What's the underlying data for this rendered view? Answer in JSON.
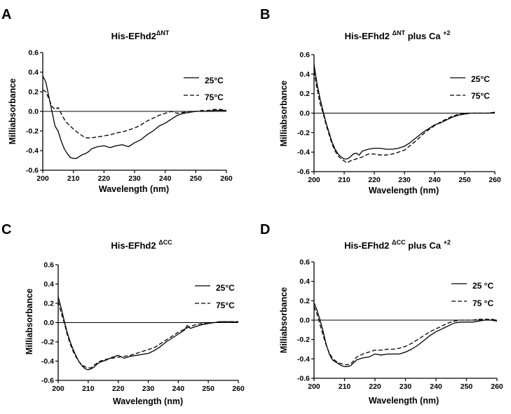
{
  "chart_data": [
    {
      "type": "line",
      "letter": "A",
      "title": {
        "main": "His-EFhd2",
        "sup": "ΔNT",
        "tail": "",
        "tail_sup": ""
      },
      "xlabel": "Wavelength (nm)",
      "ylabel": "Milliabsorbance",
      "xlim": [
        200,
        260
      ],
      "ylim": [
        -0.6,
        0.6
      ],
      "xticks": [
        200,
        210,
        220,
        230,
        240,
        250,
        260
      ],
      "yticks": [
        -0.6,
        -0.4,
        -0.2,
        0.0,
        0.2,
        0.4,
        0.6
      ],
      "zero_line": true,
      "legend_position": "top-right",
      "series": [
        {
          "name": "25°C",
          "dash": "solid",
          "x": [
            200,
            201,
            202,
            203,
            204,
            205,
            206,
            207,
            208,
            209,
            210,
            211,
            212,
            213,
            214,
            215,
            216,
            218,
            220,
            222,
            224,
            226,
            228,
            230,
            232,
            234,
            236,
            238,
            240,
            242,
            244,
            246,
            248,
            250,
            252,
            254,
            256,
            258,
            260
          ],
          "y": [
            0.36,
            0.3,
            0.15,
            0.0,
            -0.15,
            -0.2,
            -0.3,
            -0.38,
            -0.43,
            -0.47,
            -0.48,
            -0.48,
            -0.46,
            -0.44,
            -0.43,
            -0.41,
            -0.38,
            -0.36,
            -0.35,
            -0.37,
            -0.35,
            -0.34,
            -0.36,
            -0.32,
            -0.29,
            -0.24,
            -0.2,
            -0.15,
            -0.12,
            -0.08,
            -0.04,
            -0.02,
            -0.01,
            0.0,
            0.0,
            0.0,
            0.01,
            0.01,
            0.01
          ]
        },
        {
          "name": "75°C",
          "dash": "dashed",
          "x": [
            200,
            201,
            202,
            203,
            204,
            205,
            206,
            207,
            208,
            209,
            210,
            212,
            214,
            216,
            218,
            220,
            222,
            224,
            226,
            228,
            230,
            232,
            234,
            236,
            238,
            240,
            242,
            244,
            246,
            248,
            250,
            252,
            254,
            256,
            258,
            260
          ],
          "y": [
            0.22,
            0.2,
            0.13,
            0.05,
            0.02,
            0.04,
            -0.02,
            -0.08,
            -0.12,
            -0.15,
            -0.18,
            -0.23,
            -0.27,
            -0.27,
            -0.26,
            -0.25,
            -0.24,
            -0.22,
            -0.21,
            -0.19,
            -0.17,
            -0.14,
            -0.1,
            -0.07,
            -0.04,
            -0.02,
            0.0,
            -0.02,
            -0.01,
            0.0,
            0.0,
            0.01,
            0.01,
            0.02,
            0.02,
            0.01
          ]
        }
      ]
    },
    {
      "type": "line",
      "letter": "B",
      "title": {
        "main": "His-EFhd2 ",
        "sup": "ΔNT",
        "tail": " plus Ca ",
        "tail_sup": "+2"
      },
      "xlabel": "Wavelength (nm)",
      "ylabel": "Milliabsorbance",
      "xlim": [
        200,
        260
      ],
      "ylim": [
        -0.6,
        0.6
      ],
      "xticks": [
        200,
        210,
        220,
        230,
        240,
        250,
        260
      ],
      "yticks": [
        -0.6,
        -0.4,
        -0.2,
        0.0,
        0.2,
        0.4,
        0.6
      ],
      "zero_line": true,
      "legend_position": "top-right",
      "series": [
        {
          "name": "25°C",
          "dash": "solid",
          "x": [
            200,
            201,
            202,
            203,
            204,
            205,
            206,
            207,
            208,
            209,
            210,
            211,
            212,
            213,
            214,
            215,
            216,
            218,
            220,
            222,
            224,
            226,
            228,
            230,
            232,
            234,
            236,
            238,
            240,
            242,
            244,
            246,
            248,
            250,
            252,
            254,
            256,
            258,
            260
          ],
          "y": [
            0.5,
            0.3,
            0.15,
            0.02,
            -0.1,
            -0.2,
            -0.3,
            -0.37,
            -0.42,
            -0.45,
            -0.47,
            -0.47,
            -0.45,
            -0.42,
            -0.41,
            -0.43,
            -0.39,
            -0.37,
            -0.36,
            -0.36,
            -0.37,
            -0.37,
            -0.36,
            -0.34,
            -0.3,
            -0.25,
            -0.2,
            -0.16,
            -0.12,
            -0.1,
            -0.07,
            -0.04,
            -0.02,
            -0.01,
            0.0,
            0.0,
            0.0,
            0.0,
            0.01
          ]
        },
        {
          "name": "75°C",
          "dash": "dashed",
          "x": [
            200,
            201,
            202,
            203,
            204,
            205,
            206,
            207,
            208,
            209,
            210,
            211,
            212,
            213,
            214,
            216,
            218,
            220,
            222,
            224,
            226,
            228,
            230,
            232,
            234,
            236,
            238,
            240,
            242,
            244,
            246,
            248,
            250,
            252,
            254,
            256,
            258,
            260
          ],
          "y": [
            0.43,
            0.25,
            0.1,
            0.0,
            -0.12,
            -0.22,
            -0.32,
            -0.39,
            -0.44,
            -0.47,
            -0.49,
            -0.51,
            -0.49,
            -0.48,
            -0.47,
            -0.45,
            -0.42,
            -0.42,
            -0.43,
            -0.43,
            -0.42,
            -0.4,
            -0.38,
            -0.33,
            -0.28,
            -0.22,
            -0.17,
            -0.13,
            -0.09,
            -0.06,
            -0.03,
            -0.01,
            0.0,
            0.0,
            0.0,
            0.0,
            0.0,
            0.0
          ]
        }
      ]
    },
    {
      "type": "line",
      "letter": "C",
      "title": {
        "main": "His-EFhd2 ",
        "sup": "ΔCC",
        "tail": "",
        "tail_sup": ""
      },
      "xlabel": "Wavelength (nm)",
      "ylabel": "Milliabsorbance",
      "xlim": [
        200,
        260
      ],
      "ylim": [
        -0.6,
        0.6
      ],
      "xticks": [
        200,
        210,
        220,
        230,
        240,
        250,
        260
      ],
      "yticks": [
        -0.6,
        -0.4,
        -0.2,
        0.0,
        0.2,
        0.4,
        0.6
      ],
      "zero_line": true,
      "legend_position": "top-right",
      "series": [
        {
          "name": "25°C",
          "dash": "solid",
          "x": [
            200,
            201,
            202,
            203,
            204,
            205,
            206,
            207,
            208,
            209,
            210,
            211,
            212,
            213,
            214,
            216,
            218,
            220,
            222,
            224,
            226,
            228,
            230,
            232,
            234,
            236,
            238,
            240,
            242,
            243,
            244,
            245,
            246,
            248,
            250,
            252,
            254,
            256,
            258,
            260
          ],
          "y": [
            0.27,
            0.15,
            0.02,
            -0.1,
            -0.2,
            -0.28,
            -0.35,
            -0.41,
            -0.45,
            -0.48,
            -0.49,
            -0.48,
            -0.46,
            -0.43,
            -0.41,
            -0.39,
            -0.36,
            -0.34,
            -0.37,
            -0.35,
            -0.34,
            -0.33,
            -0.32,
            -0.29,
            -0.25,
            -0.2,
            -0.16,
            -0.12,
            -0.08,
            -0.03,
            -0.06,
            -0.05,
            -0.04,
            -0.02,
            -0.01,
            0.0,
            0.01,
            0.01,
            0.01,
            0.0
          ]
        },
        {
          "name": "75°C",
          "dash": "dashed",
          "x": [
            200,
            201,
            202,
            203,
            204,
            205,
            206,
            207,
            208,
            209,
            210,
            211,
            212,
            213,
            214,
            216,
            218,
            220,
            222,
            224,
            226,
            228,
            230,
            232,
            234,
            236,
            238,
            240,
            242,
            244,
            246,
            248,
            250,
            252,
            254,
            256,
            258,
            260
          ],
          "y": [
            0.22,
            0.1,
            0.0,
            -0.12,
            -0.22,
            -0.3,
            -0.36,
            -0.41,
            -0.44,
            -0.46,
            -0.47,
            -0.47,
            -0.44,
            -0.42,
            -0.4,
            -0.38,
            -0.37,
            -0.36,
            -0.35,
            -0.34,
            -0.32,
            -0.3,
            -0.28,
            -0.26,
            -0.22,
            -0.18,
            -0.14,
            -0.1,
            -0.07,
            -0.04,
            -0.02,
            -0.01,
            0.0,
            0.0,
            0.01,
            0.01,
            0.01,
            0.01
          ]
        }
      ]
    },
    {
      "type": "line",
      "letter": "D",
      "title": {
        "main": "His-EFhd2 ",
        "sup": "ΔCC",
        "tail": " plus Ca ",
        "tail_sup": "+2"
      },
      "xlabel": "Wavelength (nm)",
      "ylabel": "Milliabsorbance",
      "xlim": [
        200,
        260
      ],
      "ylim": [
        -0.6,
        0.6
      ],
      "xticks": [
        200,
        210,
        220,
        230,
        240,
        250,
        260
      ],
      "yticks": [
        -0.6,
        -0.4,
        -0.2,
        0.0,
        0.2,
        0.4,
        0.6
      ],
      "zero_line": true,
      "legend_position": "top-right",
      "series": [
        {
          "name": "25 °C",
          "dash": "solid",
          "x": [
            200,
            201,
            202,
            203,
            204,
            205,
            206,
            207,
            208,
            209,
            210,
            211,
            212,
            213,
            214,
            216,
            218,
            220,
            222,
            224,
            226,
            228,
            230,
            232,
            234,
            236,
            238,
            240,
            242,
            244,
            246,
            248,
            250,
            252,
            254,
            256,
            258,
            260
          ],
          "y": [
            0.18,
            0.1,
            0.0,
            -0.12,
            -0.25,
            -0.35,
            -0.41,
            -0.43,
            -0.45,
            -0.47,
            -0.48,
            -0.48,
            -0.47,
            -0.44,
            -0.41,
            -0.39,
            -0.38,
            -0.35,
            -0.36,
            -0.35,
            -0.35,
            -0.35,
            -0.33,
            -0.3,
            -0.26,
            -0.21,
            -0.16,
            -0.12,
            -0.09,
            -0.06,
            -0.03,
            -0.02,
            -0.02,
            -0.02,
            -0.01,
            0.0,
            0.0,
            -0.01
          ]
        },
        {
          "name": "75 °C",
          "dash": "dashed",
          "x": [
            200,
            201,
            202,
            203,
            204,
            205,
            206,
            207,
            208,
            209,
            210,
            211,
            212,
            213,
            214,
            216,
            218,
            220,
            222,
            224,
            226,
            228,
            230,
            232,
            234,
            236,
            238,
            240,
            242,
            244,
            246,
            248,
            250,
            252,
            254,
            256,
            258,
            260
          ],
          "y": [
            0.14,
            0.06,
            -0.05,
            -0.16,
            -0.26,
            -0.34,
            -0.39,
            -0.42,
            -0.44,
            -0.45,
            -0.46,
            -0.46,
            -0.45,
            -0.42,
            -0.38,
            -0.35,
            -0.33,
            -0.31,
            -0.31,
            -0.3,
            -0.3,
            -0.29,
            -0.27,
            -0.24,
            -0.2,
            -0.16,
            -0.12,
            -0.09,
            -0.06,
            -0.03,
            -0.01,
            0.0,
            0.0,
            0.0,
            0.01,
            0.01,
            0.01,
            0.0
          ]
        }
      ]
    }
  ]
}
